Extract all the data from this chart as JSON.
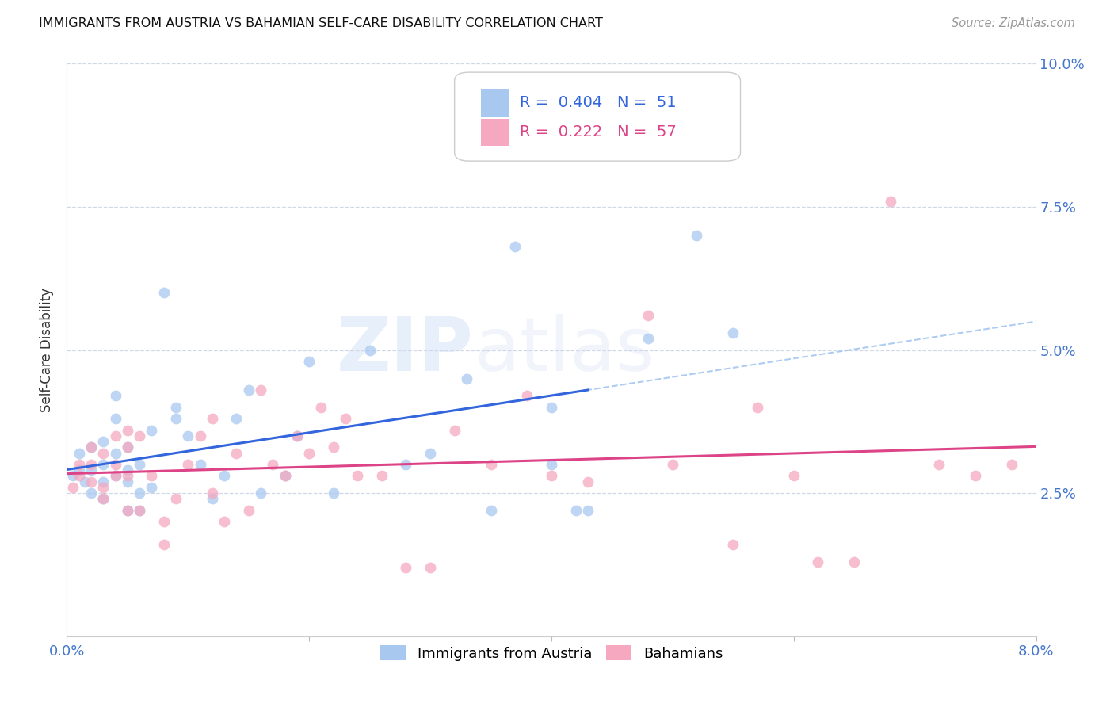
{
  "title": "IMMIGRANTS FROM AUSTRIA VS BAHAMIAN SELF-CARE DISABILITY CORRELATION CHART",
  "source": "Source: ZipAtlas.com",
  "ylabel": "Self-Care Disability",
  "xlim": [
    0.0,
    0.08
  ],
  "ylim": [
    0.0,
    0.1
  ],
  "ytick_positions": [
    0.025,
    0.05,
    0.075,
    0.1
  ],
  "ytick_labels": [
    "2.5%",
    "5.0%",
    "7.5%",
    "10.0%"
  ],
  "xtick_positions": [
    0.0,
    0.02,
    0.04,
    0.06,
    0.08
  ],
  "xtick_labels": [
    "0.0%",
    "",
    "",
    "",
    "8.0%"
  ],
  "legend_r1": "0.404",
  "legend_n1": "51",
  "legend_r2": "0.222",
  "legend_n2": "57",
  "austria_color": "#a8c8f0",
  "bahamian_color": "#f5a8c0",
  "austria_line_color": "#3366dd",
  "bahamian_line_color": "#dd4488",
  "dashed_line_color": "#a0c4f0",
  "background_color": "#ffffff",
  "grid_color": "#d0d8e8",
  "austria_x": [
    0.0005,
    0.001,
    0.001,
    0.0015,
    0.002,
    0.002,
    0.002,
    0.003,
    0.003,
    0.003,
    0.003,
    0.004,
    0.004,
    0.004,
    0.004,
    0.005,
    0.005,
    0.005,
    0.005,
    0.006,
    0.006,
    0.006,
    0.007,
    0.007,
    0.008,
    0.009,
    0.009,
    0.01,
    0.011,
    0.012,
    0.013,
    0.014,
    0.015,
    0.016,
    0.018,
    0.019,
    0.02,
    0.022,
    0.025,
    0.028,
    0.03,
    0.033,
    0.035,
    0.037,
    0.04,
    0.04,
    0.042,
    0.043,
    0.048,
    0.052,
    0.055
  ],
  "austria_y": [
    0.028,
    0.029,
    0.032,
    0.027,
    0.025,
    0.029,
    0.033,
    0.024,
    0.027,
    0.03,
    0.034,
    0.028,
    0.032,
    0.038,
    0.042,
    0.022,
    0.027,
    0.029,
    0.033,
    0.022,
    0.025,
    0.03,
    0.026,
    0.036,
    0.06,
    0.038,
    0.04,
    0.035,
    0.03,
    0.024,
    0.028,
    0.038,
    0.043,
    0.025,
    0.028,
    0.035,
    0.048,
    0.025,
    0.05,
    0.03,
    0.032,
    0.045,
    0.022,
    0.068,
    0.03,
    0.04,
    0.022,
    0.022,
    0.052,
    0.07,
    0.053
  ],
  "bahamian_x": [
    0.0005,
    0.001,
    0.001,
    0.002,
    0.002,
    0.002,
    0.003,
    0.003,
    0.003,
    0.004,
    0.004,
    0.004,
    0.005,
    0.005,
    0.005,
    0.005,
    0.006,
    0.006,
    0.007,
    0.008,
    0.008,
    0.009,
    0.01,
    0.011,
    0.012,
    0.012,
    0.013,
    0.014,
    0.015,
    0.016,
    0.017,
    0.018,
    0.019,
    0.02,
    0.021,
    0.022,
    0.023,
    0.024,
    0.026,
    0.028,
    0.03,
    0.032,
    0.035,
    0.038,
    0.04,
    0.043,
    0.048,
    0.05,
    0.055,
    0.057,
    0.06,
    0.062,
    0.065,
    0.068,
    0.072,
    0.075,
    0.078
  ],
  "bahamian_y": [
    0.026,
    0.028,
    0.03,
    0.027,
    0.03,
    0.033,
    0.024,
    0.026,
    0.032,
    0.028,
    0.03,
    0.035,
    0.022,
    0.028,
    0.033,
    0.036,
    0.022,
    0.035,
    0.028,
    0.016,
    0.02,
    0.024,
    0.03,
    0.035,
    0.025,
    0.038,
    0.02,
    0.032,
    0.022,
    0.043,
    0.03,
    0.028,
    0.035,
    0.032,
    0.04,
    0.033,
    0.038,
    0.028,
    0.028,
    0.012,
    0.012,
    0.036,
    0.03,
    0.042,
    0.028,
    0.027,
    0.056,
    0.03,
    0.016,
    0.04,
    0.028,
    0.013,
    0.013,
    0.076,
    0.03,
    0.028,
    0.03
  ]
}
